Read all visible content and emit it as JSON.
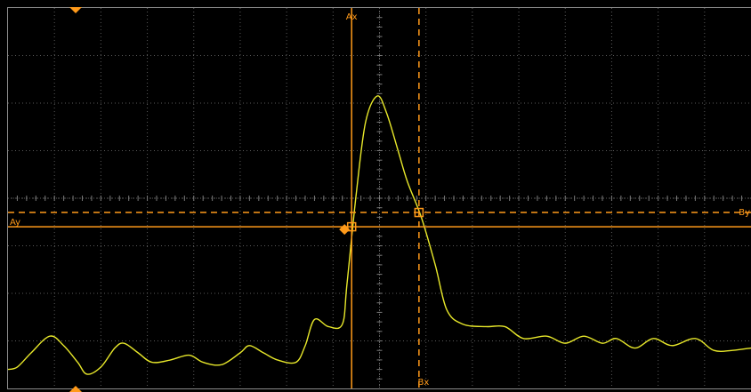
{
  "colors": {
    "background": "#000000",
    "grid": "#5a5a5a",
    "frame": "#8c8c8c",
    "trace": "#e8e82a",
    "cursor": "#ff9a1a"
  },
  "cursors": {
    "ax": {
      "label": "Ax",
      "style": "solid"
    },
    "bx": {
      "label": "Bx",
      "style": "dashed"
    },
    "ay": {
      "label": "Ay",
      "style": "solid"
    },
    "by": {
      "label": "By",
      "style": "dashed"
    }
  },
  "markers": {
    "trigger_position": "triangle",
    "trace_ground": "diamond"
  },
  "chart_data": {
    "type": "line",
    "xlim": [
      0,
      16
    ],
    "ylim": [
      0,
      8
    ],
    "grid": true,
    "x_divisions": 16,
    "y_divisions": 8,
    "cursor_values": {
      "ax": 7.4,
      "bx": 8.85,
      "ay": 3.4,
      "by": 3.7
    },
    "series": [
      {
        "points": [
          [
            0.0,
            0.4
          ],
          [
            0.2,
            0.45
          ],
          [
            0.5,
            0.75
          ],
          [
            0.9,
            1.1
          ],
          [
            1.2,
            0.9
          ],
          [
            1.5,
            0.55
          ],
          [
            1.7,
            0.3
          ],
          [
            2.0,
            0.45
          ],
          [
            2.3,
            0.85
          ],
          [
            2.5,
            0.95
          ],
          [
            2.8,
            0.75
          ],
          [
            3.1,
            0.55
          ],
          [
            3.5,
            0.6
          ],
          [
            3.9,
            0.7
          ],
          [
            4.2,
            0.55
          ],
          [
            4.6,
            0.5
          ],
          [
            5.0,
            0.75
          ],
          [
            5.2,
            0.9
          ],
          [
            5.5,
            0.75
          ],
          [
            5.8,
            0.6
          ],
          [
            6.2,
            0.55
          ],
          [
            6.4,
            0.9
          ],
          [
            6.6,
            1.45
          ],
          [
            6.9,
            1.3
          ],
          [
            7.2,
            1.35
          ],
          [
            7.3,
            2.2
          ],
          [
            7.5,
            4.1
          ],
          [
            7.7,
            5.6
          ],
          [
            7.95,
            6.15
          ],
          [
            8.15,
            5.8
          ],
          [
            8.4,
            5.0
          ],
          [
            8.6,
            4.35
          ],
          [
            8.9,
            3.6
          ],
          [
            9.2,
            2.6
          ],
          [
            9.45,
            1.65
          ],
          [
            9.8,
            1.35
          ],
          [
            10.3,
            1.3
          ],
          [
            10.7,
            1.3
          ],
          [
            11.1,
            1.05
          ],
          [
            11.6,
            1.1
          ],
          [
            12.0,
            0.95
          ],
          [
            12.4,
            1.1
          ],
          [
            12.8,
            0.95
          ],
          [
            13.1,
            1.05
          ],
          [
            13.5,
            0.85
          ],
          [
            13.9,
            1.05
          ],
          [
            14.3,
            0.9
          ],
          [
            14.8,
            1.05
          ],
          [
            15.2,
            0.8
          ],
          [
            15.6,
            0.8
          ],
          [
            16.0,
            0.85
          ]
        ]
      }
    ]
  }
}
